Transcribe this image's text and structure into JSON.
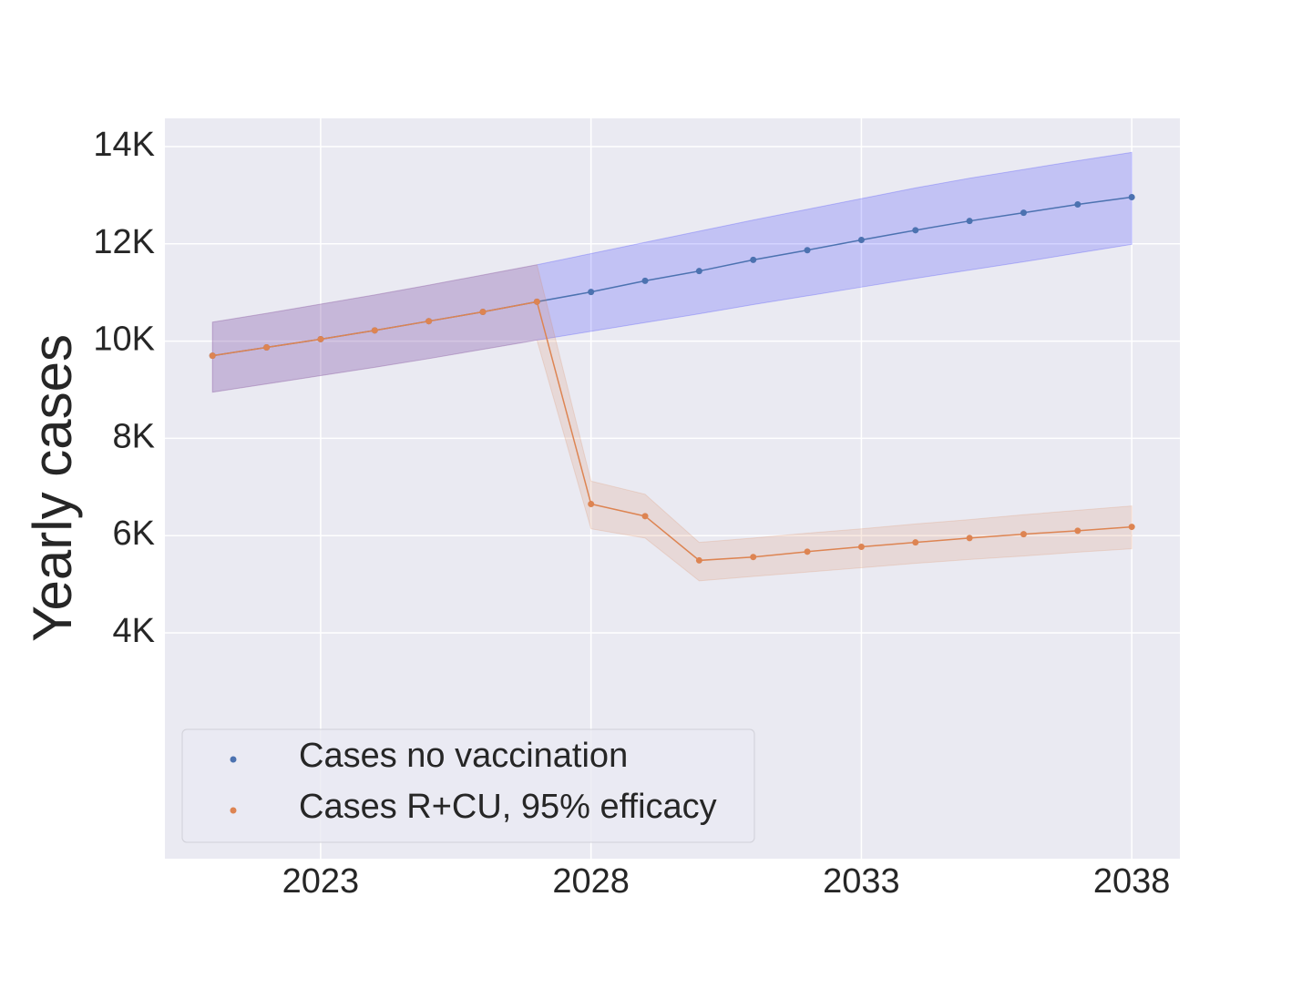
{
  "chart_data": {
    "type": "line",
    "y_label": "Yearly cases",
    "x": [
      2021,
      2022,
      2023,
      2024,
      2025,
      2026,
      2027,
      2028,
      2029,
      2030,
      2031,
      2032,
      2033,
      2034,
      2035,
      2036,
      2037,
      2038
    ],
    "series": [
      {
        "name": "Cases no vaccination",
        "color": "#4c72b0",
        "band_color": "#0000ff",
        "values": [
          9700,
          9870,
          10040,
          10220,
          10410,
          10600,
          10810,
          11010,
          11240,
          11440,
          11670,
          11870,
          12080,
          12280,
          12470,
          12640,
          12810,
          12960
        ],
        "lower": [
          8950,
          9120,
          9290,
          9460,
          9640,
          9830,
          10020,
          10200,
          10380,
          10560,
          10750,
          10930,
          11110,
          11290,
          11460,
          11630,
          11810,
          11990
        ],
        "upper": [
          10390,
          10570,
          10760,
          10950,
          11150,
          11360,
          11570,
          11800,
          12030,
          12260,
          12490,
          12710,
          12930,
          13150,
          13350,
          13530,
          13710,
          13880
        ]
      },
      {
        "name": "Cases R+CU, 95% efficacy",
        "color": "#dd8452",
        "band_color": "#dd8452",
        "values": [
          9700,
          9870,
          10040,
          10220,
          10410,
          10600,
          10810,
          6650,
          6400,
          5490,
          5560,
          5670,
          5770,
          5860,
          5950,
          6030,
          6100,
          6180
        ],
        "lower": [
          8950,
          9120,
          9290,
          9460,
          9640,
          9830,
          10020,
          6140,
          5950,
          5070,
          5160,
          5250,
          5340,
          5430,
          5510,
          5580,
          5660,
          5730
        ],
        "upper": [
          10390,
          10570,
          10760,
          10950,
          11150,
          11360,
          11570,
          7120,
          6850,
          5860,
          5950,
          6050,
          6140,
          6240,
          6330,
          6430,
          6520,
          6610
        ]
      }
    ],
    "xlim": [
      2020.12,
      2038.89
    ],
    "xticks": [
      2023,
      2028,
      2033,
      2038
    ],
    "ylim": [
      -644,
      14580
    ],
    "yticks": [
      {
        "value": 4000,
        "label": "4K"
      },
      {
        "value": 6000,
        "label": "6K"
      },
      {
        "value": 8000,
        "label": "8K"
      },
      {
        "value": 10000,
        "label": "10K"
      },
      {
        "value": 12000,
        "label": "12K"
      },
      {
        "value": 14000,
        "label": "14K"
      }
    ],
    "grid": true,
    "legend": "lower left"
  }
}
